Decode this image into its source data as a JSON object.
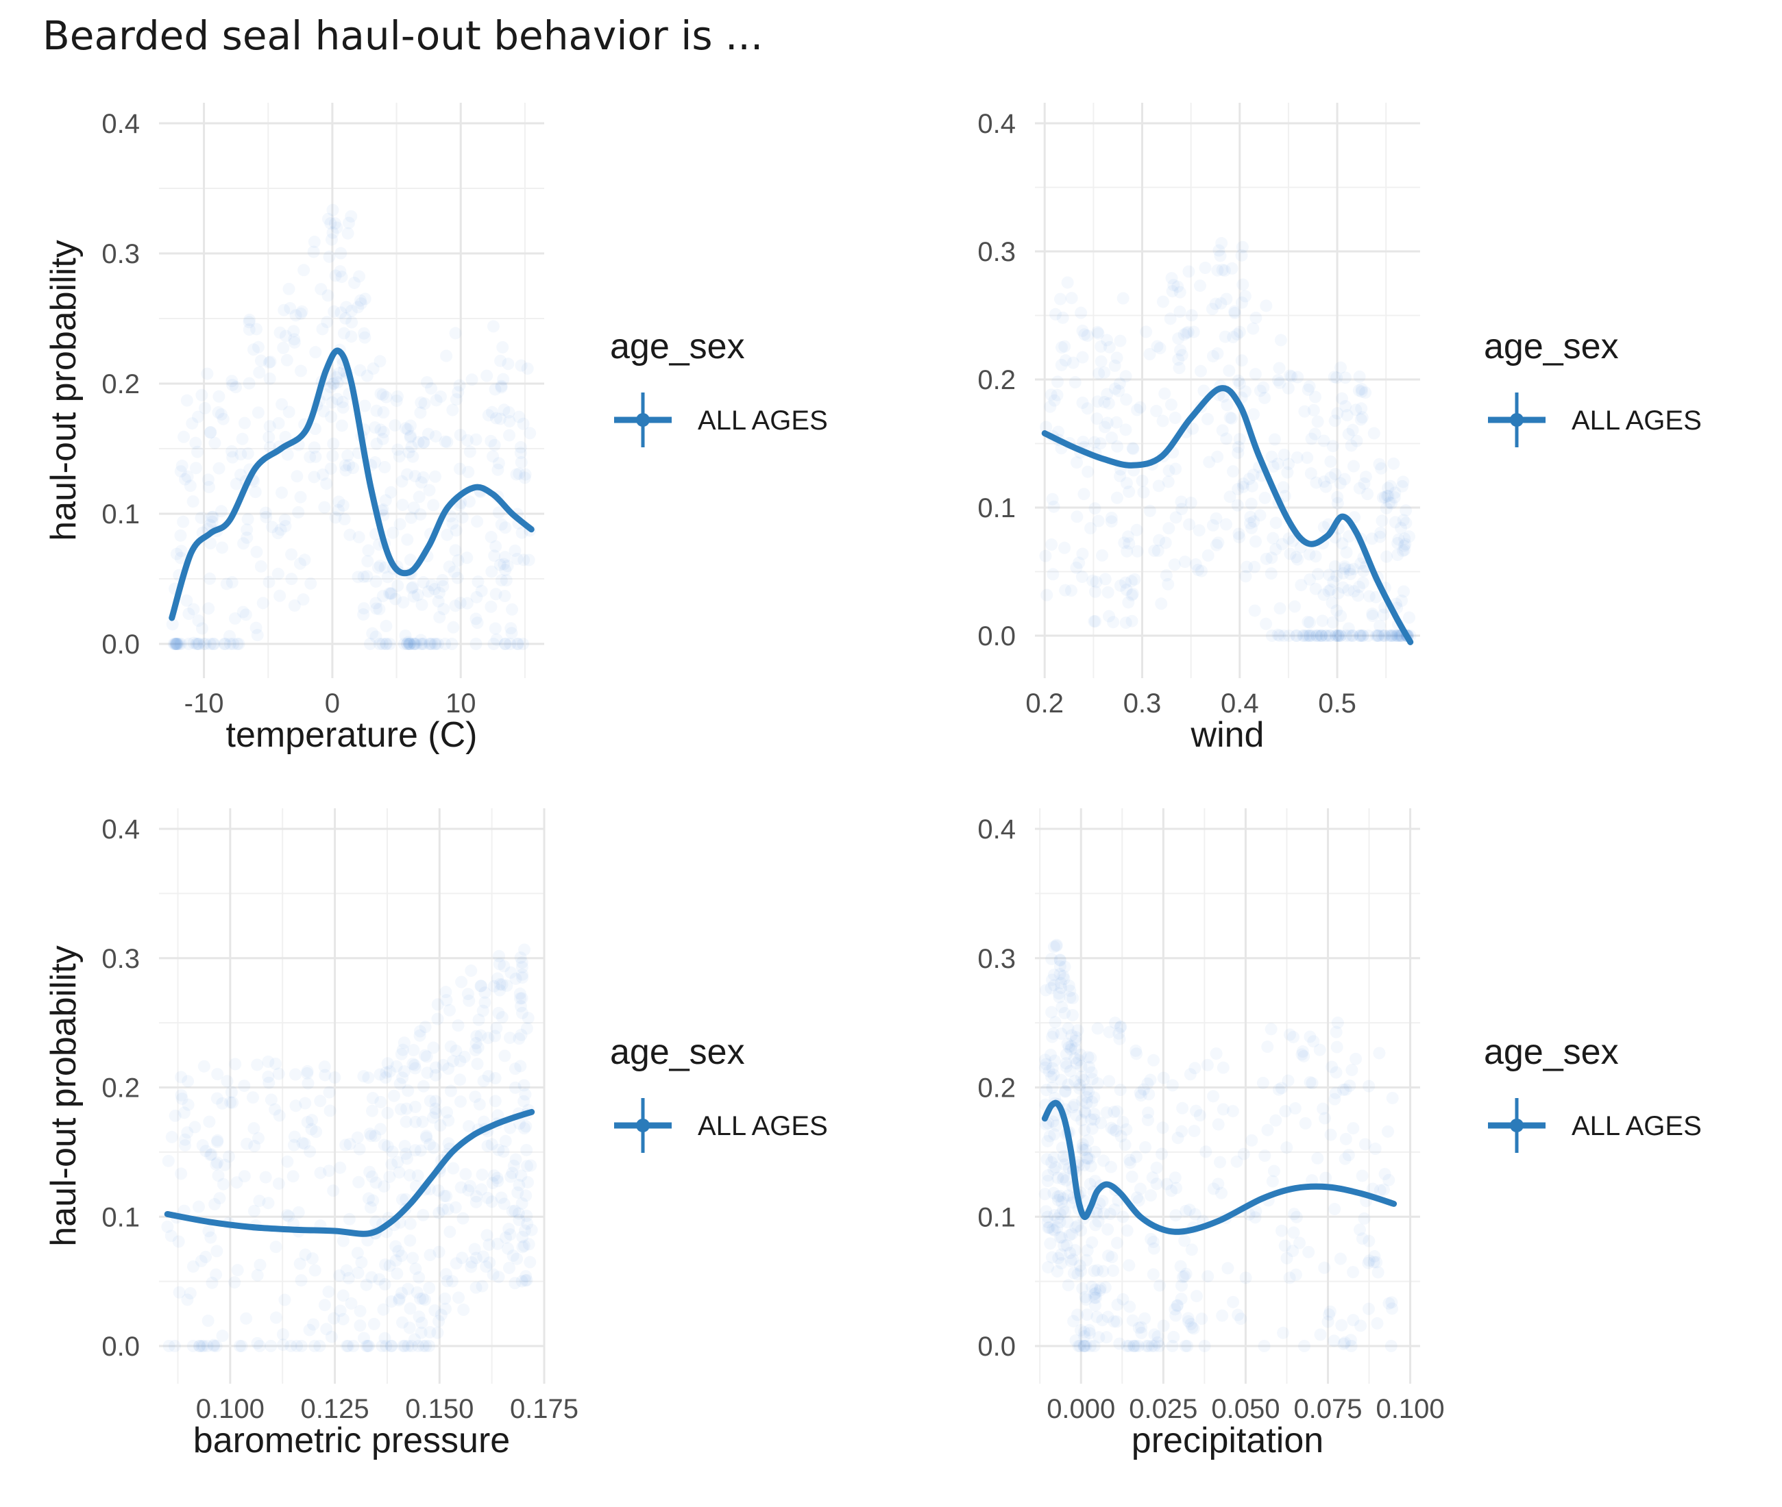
{
  "title": "Bearded seal haul-out behavior is ...",
  "colors": {
    "series": "#2b7bba",
    "points": "#2b7bd0",
    "grid_major": "#e6e6e6",
    "grid_minor": "#f0f0f0"
  },
  "chart_data": [
    {
      "type": "scatter",
      "xlabel": "temperature (C)",
      "ylabel": "haul-out probability",
      "xlim": [
        -13.5,
        16.5
      ],
      "ylim": [
        -0.025,
        0.41
      ],
      "xticks": [
        -10,
        0,
        10
      ],
      "xtick_labels": [
        "-10",
        "0",
        "10"
      ],
      "yticks": [
        0.0,
        0.1,
        0.2,
        0.3,
        0.4
      ],
      "ytick_labels": [
        "0.0",
        "0.1",
        "0.2",
        "0.3",
        "0.4"
      ],
      "legend": {
        "title": "age_sex",
        "entries": [
          "ALL AGES"
        ],
        "position": "right"
      },
      "smooth": {
        "x": [
          -12.5,
          -11,
          -9.5,
          -8,
          -6,
          -4,
          -2,
          -0.5,
          0.5,
          1.5,
          3,
          4.5,
          6,
          7.5,
          9,
          11,
          12.5,
          14,
          15.5
        ],
        "y": [
          0.02,
          0.07,
          0.085,
          0.095,
          0.135,
          0.15,
          0.165,
          0.21,
          0.225,
          0.2,
          0.12,
          0.065,
          0.055,
          0.075,
          0.105,
          0.12,
          0.115,
          0.1,
          0.088
        ]
      }
    },
    {
      "type": "scatter",
      "xlabel": "wind",
      "ylabel": "",
      "xlim": [
        0.19,
        0.585
      ],
      "ylim": [
        -0.025,
        0.41
      ],
      "xticks": [
        0.2,
        0.3,
        0.4,
        0.5
      ],
      "xtick_labels": [
        "0.2",
        "0.3",
        "0.4",
        "0.5"
      ],
      "yticks": [
        0.0,
        0.1,
        0.2,
        0.3,
        0.4
      ],
      "ytick_labels": [
        "0.0",
        "0.1",
        "0.2",
        "0.3",
        "0.4"
      ],
      "legend": {
        "title": "age_sex",
        "entries": [
          "ALL AGES"
        ],
        "position": "right"
      },
      "smooth": {
        "x": [
          0.2,
          0.23,
          0.26,
          0.29,
          0.32,
          0.35,
          0.38,
          0.4,
          0.42,
          0.45,
          0.47,
          0.49,
          0.505,
          0.52,
          0.54,
          0.56,
          0.575
        ],
        "y": [
          0.158,
          0.147,
          0.138,
          0.133,
          0.14,
          0.17,
          0.193,
          0.18,
          0.14,
          0.09,
          0.072,
          0.078,
          0.093,
          0.08,
          0.045,
          0.015,
          -0.005
        ]
      }
    },
    {
      "type": "scatter",
      "xlabel": "barometric pressure",
      "ylabel": "haul-out probability",
      "xlim": [
        0.083,
        0.175
      ],
      "ylim": [
        -0.025,
        0.41
      ],
      "xticks": [
        0.1,
        0.125,
        0.15,
        0.175
      ],
      "xtick_labels": [
        "0.100",
        "0.125",
        "0.150",
        "0.175"
      ],
      "yticks": [
        0.0,
        0.1,
        0.2,
        0.3,
        0.4
      ],
      "ytick_labels": [
        "0.0",
        "0.1",
        "0.2",
        "0.3",
        "0.4"
      ],
      "legend": {
        "title": "age_sex",
        "entries": [
          "ALL AGES"
        ],
        "position": "right"
      },
      "smooth": {
        "x": [
          0.085,
          0.095,
          0.105,
          0.115,
          0.125,
          0.133,
          0.138,
          0.143,
          0.148,
          0.153,
          0.158,
          0.163,
          0.168,
          0.172
        ],
        "y": [
          0.102,
          0.096,
          0.092,
          0.09,
          0.089,
          0.087,
          0.095,
          0.11,
          0.13,
          0.15,
          0.163,
          0.171,
          0.177,
          0.181
        ]
      }
    },
    {
      "type": "scatter",
      "xlabel": "precipitation",
      "ylabel": "",
      "xlim": [
        -0.014,
        0.103
      ],
      "ylim": [
        -0.025,
        0.41
      ],
      "xticks": [
        0.0,
        0.025,
        0.05,
        0.075,
        0.1
      ],
      "xtick_labels": [
        "0.000",
        "0.025",
        "0.050",
        "0.075",
        "0.100"
      ],
      "yticks": [
        0.0,
        0.1,
        0.2,
        0.3,
        0.4
      ],
      "ytick_labels": [
        "0.0",
        "0.1",
        "0.2",
        "0.3",
        "0.4"
      ],
      "legend": {
        "title": "age_sex",
        "entries": [
          "ALL AGES"
        ],
        "position": "right"
      },
      "smooth": {
        "x": [
          -0.011,
          -0.009,
          -0.007,
          -0.005,
          -0.003,
          -0.001,
          0.001,
          0.003,
          0.005,
          0.008,
          0.012,
          0.018,
          0.025,
          0.032,
          0.042,
          0.055,
          0.065,
          0.075,
          0.085,
          0.095
        ],
        "y": [
          0.176,
          0.186,
          0.187,
          0.175,
          0.15,
          0.115,
          0.1,
          0.108,
          0.12,
          0.125,
          0.118,
          0.1,
          0.09,
          0.089,
          0.097,
          0.114,
          0.122,
          0.123,
          0.118,
          0.11
        ]
      }
    }
  ]
}
